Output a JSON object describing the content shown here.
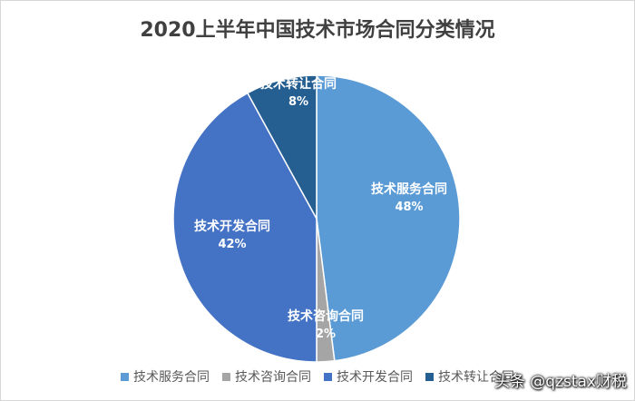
{
  "chart_data": {
    "type": "pie",
    "title": "2020上半年中国技术市场合同分类情况",
    "categories": [
      "技术服务合同",
      "技术咨询合同",
      "技术开发合同",
      "技术转让合同"
    ],
    "values": [
      48,
      2,
      42,
      8
    ],
    "value_labels": [
      "48%",
      "2%",
      "42%",
      "8%"
    ],
    "colors": [
      "#5b9bd5",
      "#a5a5a5",
      "#4472c4",
      "#255e91"
    ],
    "legend_position": "bottom"
  },
  "watermark": "头条 @qzstax财税"
}
